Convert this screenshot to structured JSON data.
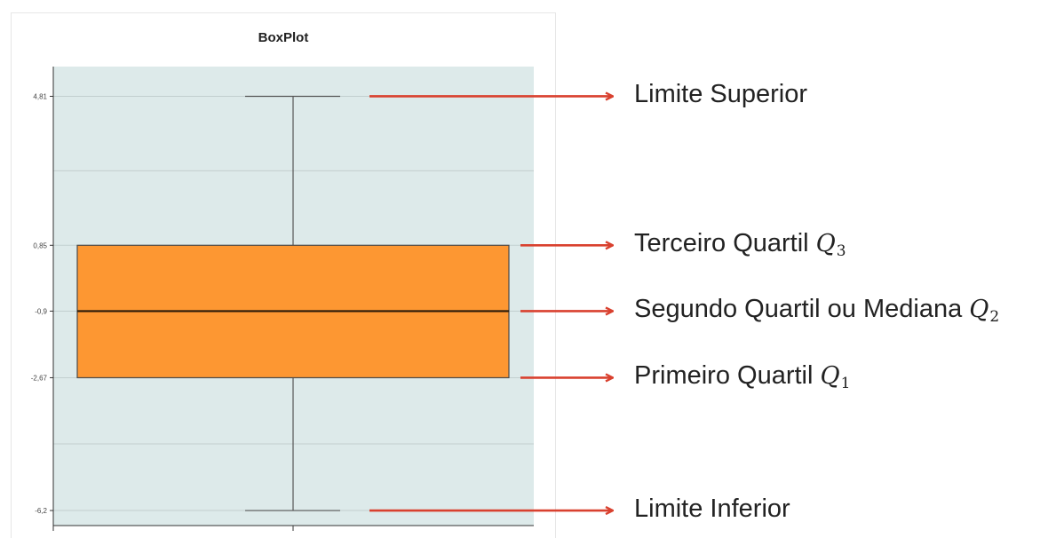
{
  "chart_data": {
    "type": "boxplot",
    "title": "BoxPlot",
    "xlabel": "",
    "ylabel": "",
    "ylim": [
      -6.6,
      5.6
    ],
    "yticks": [
      4.81,
      0.85,
      -0.9,
      -2.67,
      -6.2
    ],
    "ytick_labels": [
      "4,81",
      "0,85",
      "-0,9",
      "-2,67",
      "-6,2"
    ],
    "grid_minor": [
      2.83,
      -4.43
    ],
    "grid": true,
    "box": {
      "upper_limit": 4.81,
      "q3": 0.85,
      "median": -0.9,
      "q1": -2.67,
      "lower_limit": -6.2
    },
    "colors": {
      "panel": "#ddeaea",
      "box_fill": "#fd9732",
      "box_stroke": "#4a4a4a",
      "arrow": "#d9412f",
      "grid": "#c2cfcf"
    },
    "annotations": [
      {
        "key": "upper_limit",
        "label": "Limite Superior",
        "symbol": "",
        "sub": ""
      },
      {
        "key": "q3",
        "label": "Terceiro Quartil",
        "symbol": "Q",
        "sub": "3"
      },
      {
        "key": "median",
        "label": "Segundo Quartil ou Mediana",
        "symbol": "Q",
        "sub": "2"
      },
      {
        "key": "q1",
        "label": "Primeiro Quartil",
        "symbol": "Q",
        "sub": "1"
      },
      {
        "key": "lower_limit",
        "label": "Limite Inferior",
        "symbol": "",
        "sub": ""
      }
    ]
  }
}
